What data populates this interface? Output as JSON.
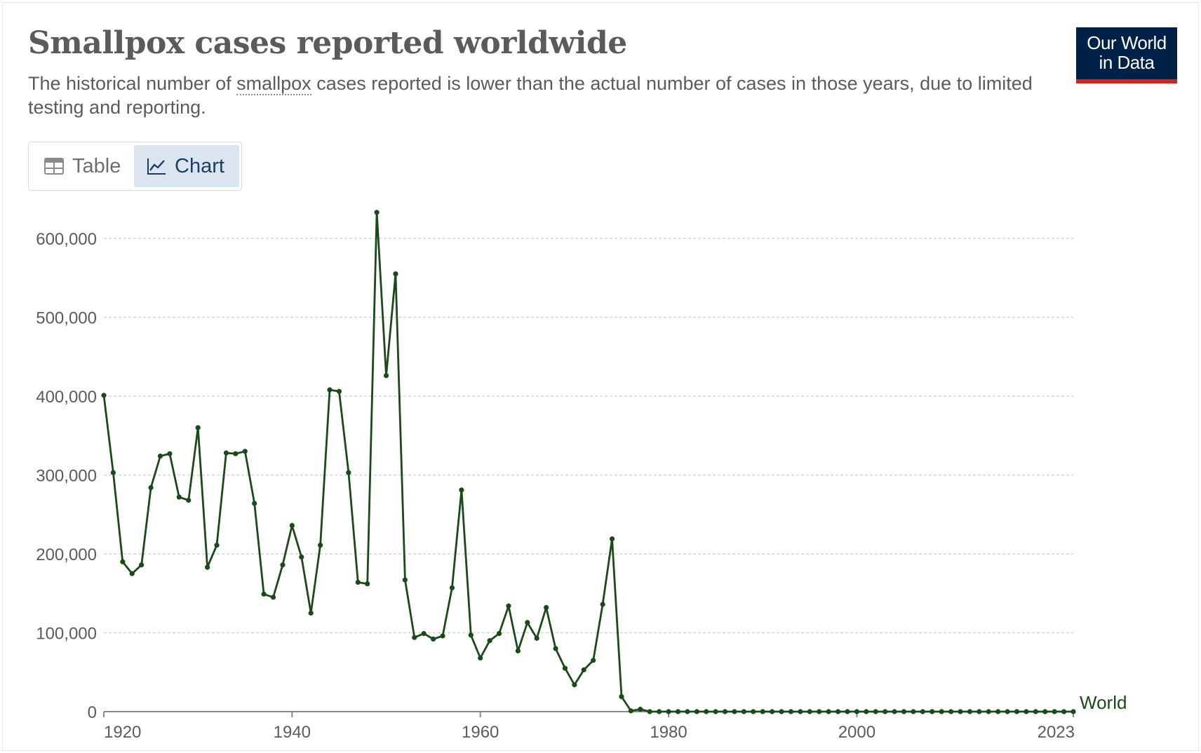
{
  "header": {
    "title": "Smallpox cases reported worldwide",
    "subtitle_before": "The historical number of ",
    "subtitle_term": "smallpox",
    "subtitle_after": " cases reported is lower than the actual number of cases in those years, due to limited testing and reporting."
  },
  "logo": {
    "line1": "Our World",
    "line2": "in Data",
    "bg_color": "#002147",
    "accent_color": "#ce261e"
  },
  "tabs": [
    {
      "label": "Table",
      "icon": "table-icon",
      "active": false
    },
    {
      "label": "Chart",
      "icon": "line-chart-icon",
      "active": true
    }
  ],
  "chart_data": {
    "type": "line",
    "title": "Smallpox cases reported worldwide",
    "xlabel": "",
    "ylabel": "",
    "xlim": [
      1920,
      2023
    ],
    "ylim": [
      0,
      600000
    ],
    "x_ticks": [
      1920,
      1940,
      1960,
      1980,
      2000,
      2023
    ],
    "y_ticks": [
      0,
      100000,
      200000,
      300000,
      400000,
      500000,
      600000
    ],
    "y_tick_labels": [
      "0",
      "100,000",
      "200,000",
      "300,000",
      "400,000",
      "500,000",
      "600,000"
    ],
    "grid": "horizontal dashed",
    "legend": "end-of-line label",
    "color": "#1a4a1a",
    "series": [
      {
        "name": "World",
        "x": [
          1920,
          1921,
          1922,
          1923,
          1924,
          1925,
          1926,
          1927,
          1928,
          1929,
          1930,
          1931,
          1932,
          1933,
          1934,
          1935,
          1936,
          1937,
          1938,
          1939,
          1940,
          1941,
          1942,
          1943,
          1944,
          1945,
          1946,
          1947,
          1948,
          1949,
          1950,
          1951,
          1952,
          1953,
          1954,
          1955,
          1956,
          1957,
          1958,
          1959,
          1960,
          1961,
          1962,
          1963,
          1964,
          1965,
          1966,
          1967,
          1968,
          1969,
          1970,
          1971,
          1972,
          1973,
          1974,
          1975,
          1976,
          1977,
          1978,
          1979,
          1980,
          1981,
          1982,
          1983,
          1984,
          1985,
          1986,
          1987,
          1988,
          1989,
          1990,
          1991,
          1992,
          1993,
          1994,
          1995,
          1996,
          1997,
          1998,
          1999,
          2000,
          2001,
          2002,
          2003,
          2004,
          2005,
          2006,
          2007,
          2008,
          2009,
          2010,
          2011,
          2012,
          2013,
          2014,
          2015,
          2016,
          2017,
          2018,
          2019,
          2020,
          2021,
          2022,
          2023
        ],
        "values": [
          401000,
          303000,
          190000,
          175000,
          186000,
          284000,
          324000,
          327000,
          272000,
          268000,
          360000,
          183000,
          211000,
          328000,
          327000,
          330000,
          264000,
          149000,
          145000,
          186000,
          236000,
          196000,
          125000,
          211000,
          408000,
          406000,
          303000,
          164000,
          162000,
          633000,
          426000,
          555000,
          167000,
          94000,
          99000,
          92000,
          96000,
          157000,
          281000,
          97000,
          68000,
          90000,
          99000,
          134000,
          77000,
          113000,
          93000,
          132000,
          80000,
          55000,
          34000,
          53000,
          65000,
          136000,
          219000,
          19000,
          1000,
          3000,
          0,
          0,
          0,
          0,
          0,
          0,
          0,
          0,
          0,
          0,
          0,
          0,
          0,
          0,
          0,
          0,
          0,
          0,
          0,
          0,
          0,
          0,
          0,
          0,
          0,
          0,
          0,
          0,
          0,
          0,
          0,
          0,
          0,
          0,
          0,
          0,
          0,
          0,
          0,
          0,
          0,
          0,
          0,
          0,
          0,
          0
        ]
      }
    ]
  }
}
